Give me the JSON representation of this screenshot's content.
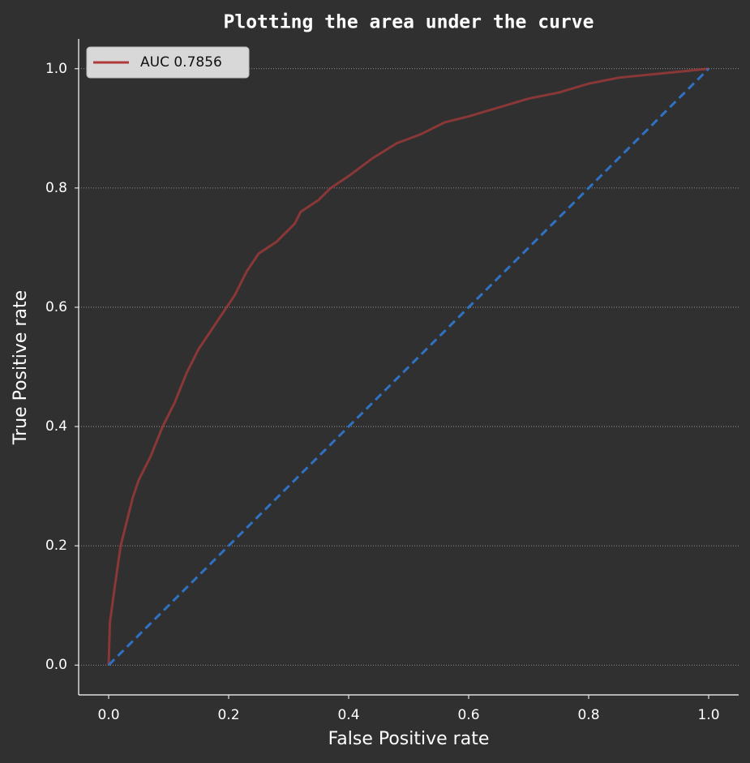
{
  "chart_data": {
    "type": "line",
    "title": "Plotting the area under the curve",
    "xlabel": "False Positive rate",
    "ylabel": "True Positive rate",
    "series": [
      {
        "name": "AUC 0.7856",
        "color": "#b03a3a",
        "linestyle": "solid",
        "x": [
          0,
          0.002,
          0.01,
          0.02,
          0.03,
          0.04,
          0.05,
          0.07,
          0.09,
          0.11,
          0.13,
          0.15,
          0.17,
          0.19,
          0.21,
          0.23,
          0.25,
          0.28,
          0.31,
          0.32,
          0.35,
          0.37,
          0.4,
          0.44,
          0.48,
          0.52,
          0.56,
          0.6,
          0.65,
          0.7,
          0.75,
          0.8,
          0.85,
          0.9,
          0.95,
          1.0
        ],
        "values": [
          0,
          0.07,
          0.13,
          0.2,
          0.24,
          0.28,
          0.31,
          0.35,
          0.4,
          0.44,
          0.49,
          0.53,
          0.56,
          0.59,
          0.62,
          0.66,
          0.69,
          0.71,
          0.74,
          0.76,
          0.78,
          0.8,
          0.82,
          0.85,
          0.875,
          0.89,
          0.91,
          0.92,
          0.935,
          0.95,
          0.96,
          0.975,
          0.985,
          0.99,
          0.995,
          1.0
        ]
      },
      {
        "color": "#2f72c4",
        "linestyle": "dashed",
        "x": [
          0,
          1
        ],
        "values": [
          0,
          1
        ]
      }
    ],
    "xlim": [
      -0.05,
      1.05
    ],
    "ylim": [
      -0.05,
      1.05
    ],
    "xticks": [
      {
        "value": 0,
        "label": "0.0"
      },
      {
        "value": 0.2,
        "label": "0.2"
      },
      {
        "value": 0.4,
        "label": "0.4"
      },
      {
        "value": 0.6,
        "label": "0.6"
      },
      {
        "value": 0.8,
        "label": "0.8"
      },
      {
        "value": 1,
        "label": "1.0"
      }
    ],
    "yticks": [
      {
        "value": 0,
        "label": "0.0"
      },
      {
        "value": 0.2,
        "label": "0.2"
      },
      {
        "value": 0.4,
        "label": "0.4"
      },
      {
        "value": 0.6,
        "label": "0.6"
      },
      {
        "value": 0.8,
        "label": "0.8"
      },
      {
        "value": 1,
        "label": "1.0"
      }
    ],
    "grid": "y",
    "legend": "upper left"
  }
}
